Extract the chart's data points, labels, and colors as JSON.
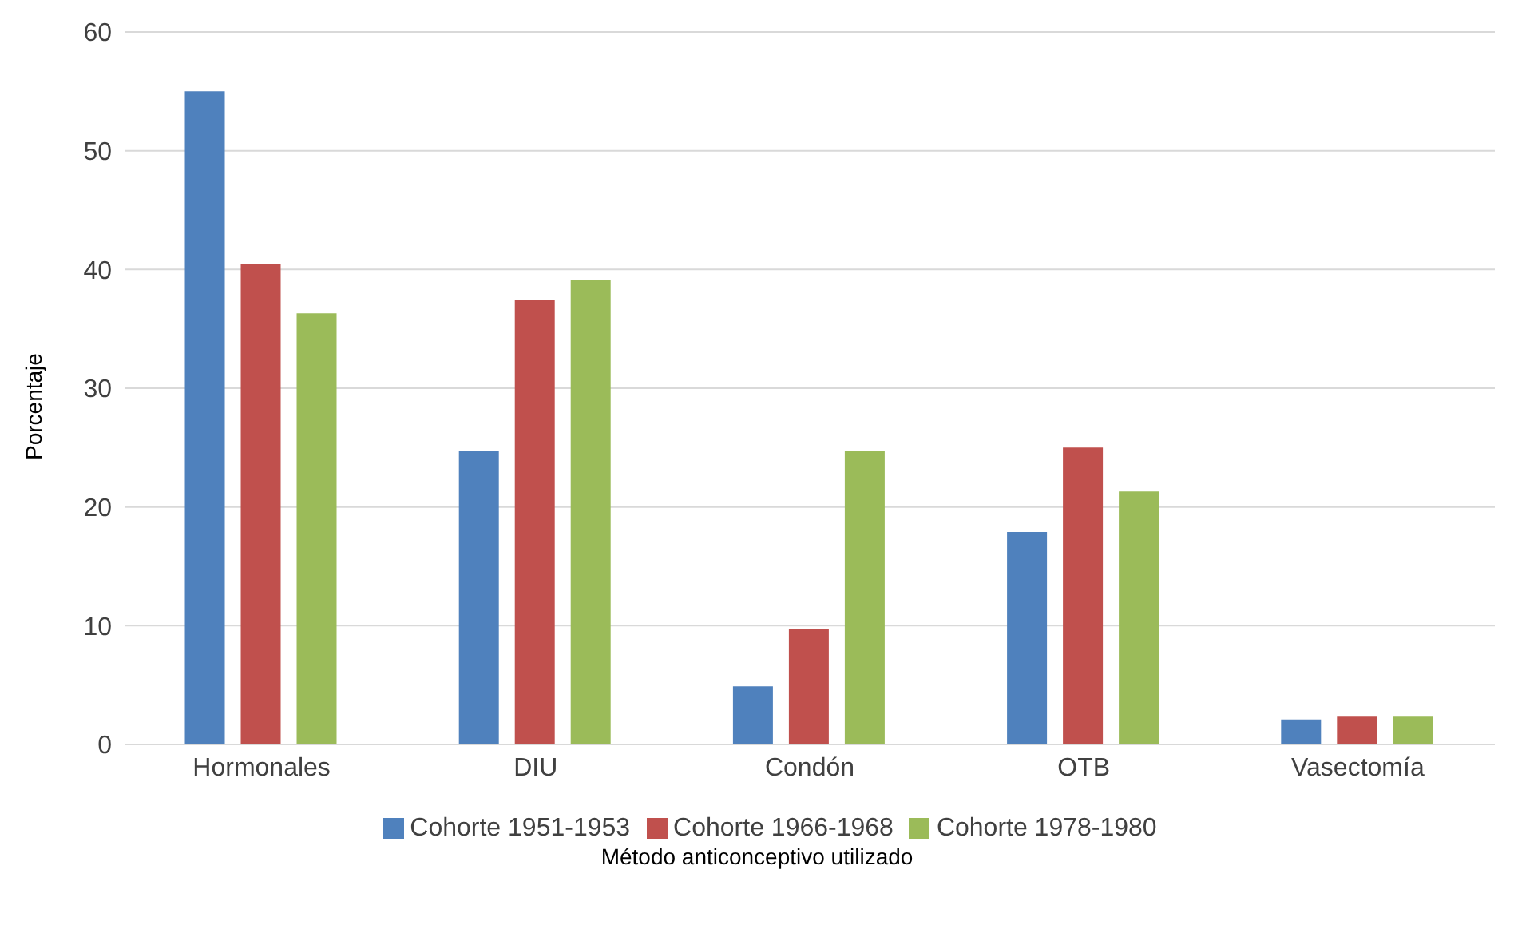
{
  "chart_data": {
    "type": "bar",
    "xlabel": "Método anticonceptivo utilizado",
    "ylabel": "Porcentaje",
    "categories": [
      "Hormonales",
      "DIU",
      "Condón",
      "OTB",
      "Vasectomía"
    ],
    "series": [
      {
        "name": "Cohorte 1951-1953",
        "color": "#4f81bd",
        "values": [
          55,
          24.7,
          4.9,
          17.9,
          2.1
        ]
      },
      {
        "name": "Cohorte 1966-1968",
        "color": "#c0504d",
        "values": [
          40.5,
          37.4,
          9.7,
          25,
          2.4
        ]
      },
      {
        "name": "Cohorte 1978-1980",
        "color": "#9bbb59",
        "values": [
          36.3,
          39.1,
          24.7,
          21.3,
          2.4
        ]
      }
    ],
    "ylim": [
      0,
      60
    ],
    "yticks": [
      0,
      10,
      20,
      30,
      40,
      50,
      60
    ],
    "grid": "y",
    "legend": "bottom"
  }
}
